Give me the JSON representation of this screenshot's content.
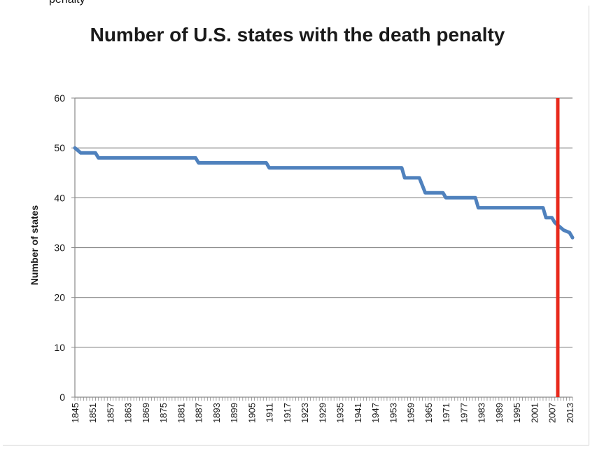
{
  "header_fragment": "penalty",
  "chart_data": {
    "type": "line",
    "title": "Number of U.S. states with the death penalty",
    "xlabel": "",
    "ylabel": "Number of states",
    "ylim": [
      0,
      60
    ],
    "yticks": [
      0,
      10,
      20,
      30,
      40,
      50,
      60
    ],
    "xlim": [
      1845,
      2014
    ],
    "xticks": [
      "1845",
      "1851",
      "1857",
      "1863",
      "1869",
      "1875",
      "1881",
      "1887",
      "1893",
      "1899",
      "1905",
      "1911",
      "1917",
      "1923",
      "1929",
      "1935",
      "1941",
      "1947",
      "1953",
      "1959",
      "1965",
      "1971",
      "1977",
      "1983",
      "1989",
      "1995",
      "2001",
      "2007",
      "2013"
    ],
    "grid": true,
    "legend": "none",
    "series": [
      {
        "color": "#4f81bd",
        "x": [
          1845,
          1846,
          1847,
          1852,
          1853,
          1886,
          1887,
          1910,
          1911,
          1956,
          1957,
          1962,
          1964,
          1970,
          1971,
          1981,
          1982,
          2004,
          2005,
          2007,
          2008,
          2010,
          2011,
          2013,
          2014
        ],
        "values": [
          50,
          49.5,
          49,
          49,
          48,
          48,
          47,
          47,
          46,
          46,
          44,
          44,
          41,
          41,
          40,
          40,
          38,
          38,
          36,
          36,
          35,
          34,
          33.5,
          33,
          32
        ]
      }
    ],
    "annotations": [
      {
        "type": "vertical-line",
        "x": 2009,
        "color": "#e8291c"
      }
    ]
  }
}
